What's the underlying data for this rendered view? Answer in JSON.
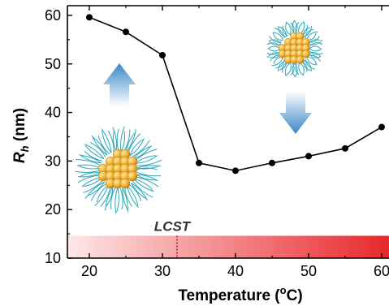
{
  "chart_data": {
    "type": "line",
    "title": "",
    "xlabel": "Temperature (",
    "xlabel_sup": "o",
    "xlabel_unit": "C)",
    "ylabel_main": "R",
    "ylabel_sub": "h",
    "ylabel_unit": " (nm)",
    "xlim": [
      17,
      61
    ],
    "ylim": [
      10,
      62
    ],
    "xticks": [
      20,
      30,
      40,
      50,
      60
    ],
    "xtick_labels": [
      "20",
      "30",
      "40",
      "50",
      "60"
    ],
    "yticks": [
      10,
      20,
      30,
      40,
      50,
      60
    ],
    "ytick_labels": [
      "10",
      "20",
      "30",
      "40",
      "50",
      "60"
    ],
    "grid": false,
    "series": [
      {
        "x": [
          20,
          25,
          30,
          35,
          40,
          45,
          50,
          55,
          60
        ],
        "y": [
          59.6,
          56.6,
          51.8,
          29.6,
          28.0,
          29.6,
          31.0,
          32.6,
          37.0
        ]
      }
    ],
    "annotation": {
      "label": "LCST",
      "x": 32,
      "band_ymin": 10,
      "band_ymax": 14.6
    },
    "colors": {
      "line": "#000000",
      "marker": "#000000",
      "gradient_start": "#fde8e8",
      "gradient_end": "#e8272b",
      "lcst_line": "#b0201e",
      "arrow": "#3a86c8"
    },
    "icons": [
      "extended-micelle-icon",
      "collapsed-micelle-icon",
      "up-arrow-icon",
      "down-arrow-icon"
    ]
  }
}
